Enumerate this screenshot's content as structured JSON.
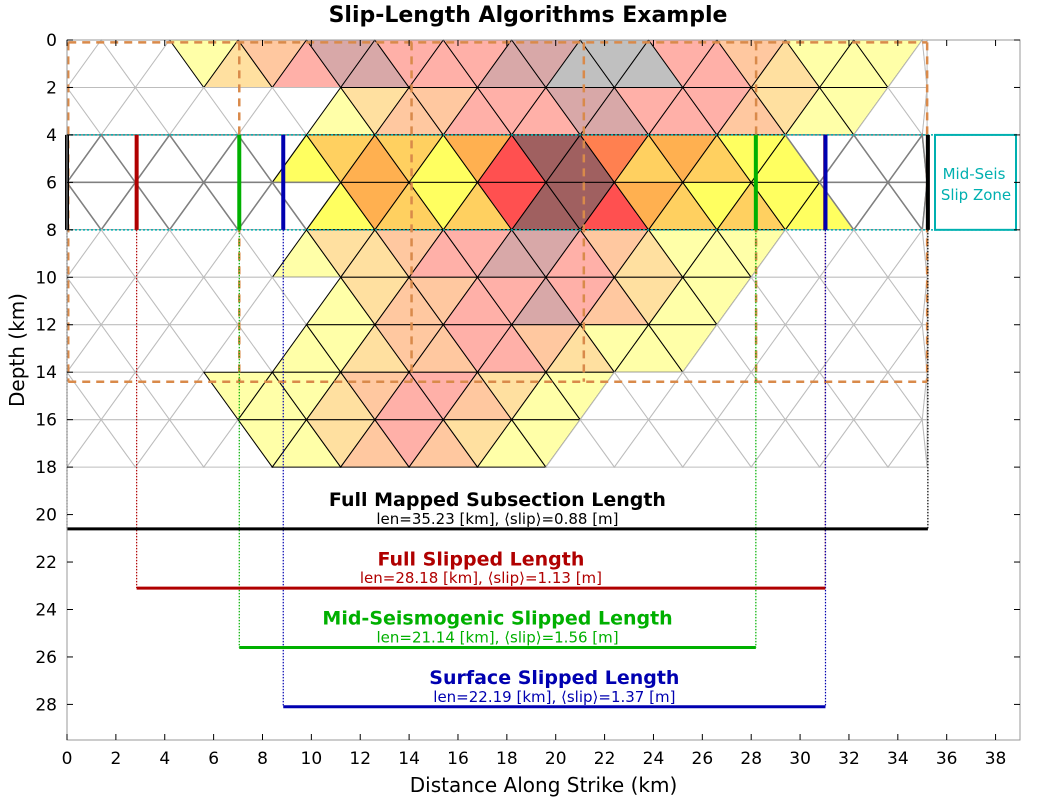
{
  "chart_data": {
    "type": "heatmap",
    "title": "Slip-Length Algorithms Example",
    "xlabel": "Distance Along Strike (km)",
    "ylabel": "Depth (km)",
    "xlim": [
      0,
      39
    ],
    "ylim": [
      0,
      29.5
    ],
    "y_inverted": true,
    "grid": false,
    "x_ticks": [
      0,
      2,
      4,
      6,
      8,
      10,
      12,
      14,
      16,
      18,
      20,
      22,
      24,
      26,
      28,
      30,
      32,
      34,
      36,
      38
    ],
    "y_ticks": [
      0,
      2,
      4,
      6,
      8,
      10,
      12,
      14,
      16,
      18,
      20,
      22,
      24,
      26,
      28
    ],
    "mesh": {
      "x_start": 0,
      "x_end": 35.2,
      "depth_top": 0,
      "depth_bottom": 18,
      "row_height": 2,
      "col_width": 2.8
    },
    "subsection_boundaries_km": [
      7.05,
      14.1,
      21.15,
      28.2
    ],
    "mid_seis_zone": {
      "label_line1": "Mid-Seis",
      "label_line2": "Slip Zone",
      "depth_top": 4,
      "depth_bottom": 8,
      "color": "#00b0b0"
    },
    "length_measures": [
      {
        "title": "Full Mapped Subsection Length",
        "subtitle": "len=35.23 [km], ⟨slip⟩=0.88 [m]",
        "x_start": 0,
        "x_end": 35.23,
        "depth": 20.6,
        "title_depth": 19.3,
        "color": "#000000"
      },
      {
        "title": "Full Slipped Length",
        "subtitle": "len=28.18 [km], ⟨slip⟩=1.13 [m]",
        "x_start": 2.85,
        "x_end": 31.03,
        "depth": 23.1,
        "title_depth": 21.8,
        "color": "#b00000"
      },
      {
        "title": "Mid-Seismogenic Slipped Length",
        "subtitle": "len=21.14 [km], ⟨slip⟩=1.56 [m]",
        "x_start": 7.05,
        "x_end": 28.19,
        "depth": 25.6,
        "title_depth": 24.3,
        "color": "#00b000"
      },
      {
        "title": "Surface Slipped Length",
        "subtitle": "len=22.19 [km], ⟨slip⟩=1.37 [m]",
        "x_start": 8.85,
        "x_end": 31.04,
        "depth": 28.1,
        "title_depth": 26.8,
        "color": "#0000b0"
      }
    ],
    "slip_intensity_colors": [
      "#ffffa8",
      "#ffe0a0",
      "#ffc8a0",
      "#ffb0a8",
      "#d8a8a8",
      "#ffd060",
      "#ffb050",
      "#ff8050",
      "#ff5050",
      "#a06060",
      "#c0c0c0",
      "#ffff60"
    ],
    "slipped_cells": {
      "0": {
        "3": 0,
        "4": 1,
        "5": 2,
        "6": 3,
        "7": 4,
        "8": 4,
        "9": 3,
        "10": 3,
        "11": 3,
        "12": 4,
        "13": 4,
        "14": 10,
        "15": 10,
        "16": 10,
        "17": 3,
        "18": 3,
        "19": 2,
        "20": 1,
        "21": 0,
        "22": 0,
        "23": 0
      },
      "1": {
        "6": 0,
        "7": 1,
        "8": 2,
        "9": 2,
        "10": 3,
        "11": 3,
        "12": 3,
        "13": 4,
        "14": 4,
        "15": 3,
        "16": 3,
        "17": 3,
        "18": 2,
        "19": 1,
        "20": 0,
        "21": 0
      },
      "2": {
        "6": 11,
        "7": 5,
        "8": 6,
        "9": 5,
        "10": 11,
        "11": 6,
        "12": 8,
        "13": 9,
        "14": 9,
        "15": 7,
        "16": 5,
        "17": 6,
        "18": 5,
        "19": 11,
        "20": 11
      },
      "3": {
        "6": 11,
        "7": 6,
        "8": 5,
        "9": 11,
        "10": 5,
        "11": 8,
        "12": 9,
        "13": 9,
        "14": 8,
        "15": 6,
        "16": 5,
        "17": 11,
        "18": 5,
        "19": 11,
        "20": 11
      },
      "4": {
        "6": 0,
        "7": 1,
        "8": 1,
        "9": 2,
        "10": 3,
        "11": 3,
        "12": 4,
        "13": 4,
        "14": 3,
        "15": 2,
        "16": 1,
        "17": 0,
        "18": 0,
        "19": 0
      },
      "5": {
        "6": 0,
        "7": 1,
        "8": 2,
        "9": 2,
        "10": 3,
        "11": 3,
        "12": 4,
        "13": 3,
        "14": 2,
        "15": 1,
        "16": 0,
        "17": 0
      },
      "6": {
        "6": 0,
        "7": 0,
        "8": 1,
        "9": 2,
        "10": 2,
        "11": 3,
        "12": 3,
        "13": 2,
        "14": 1,
        "15": 0,
        "16": 0,
        "17": 0
      },
      "7": {
        "3": 0,
        "4": 0,
        "5": 0,
        "6": 1,
        "7": 2,
        "8": 3,
        "9": 3,
        "10": 2,
        "11": 1,
        "12": 0,
        "13": 0
      },
      "8": {
        "5": 0,
        "6": 0,
        "7": 1,
        "8": 2,
        "9": 3,
        "10": 2,
        "11": 1,
        "12": 0,
        "13": 0
      }
    }
  }
}
